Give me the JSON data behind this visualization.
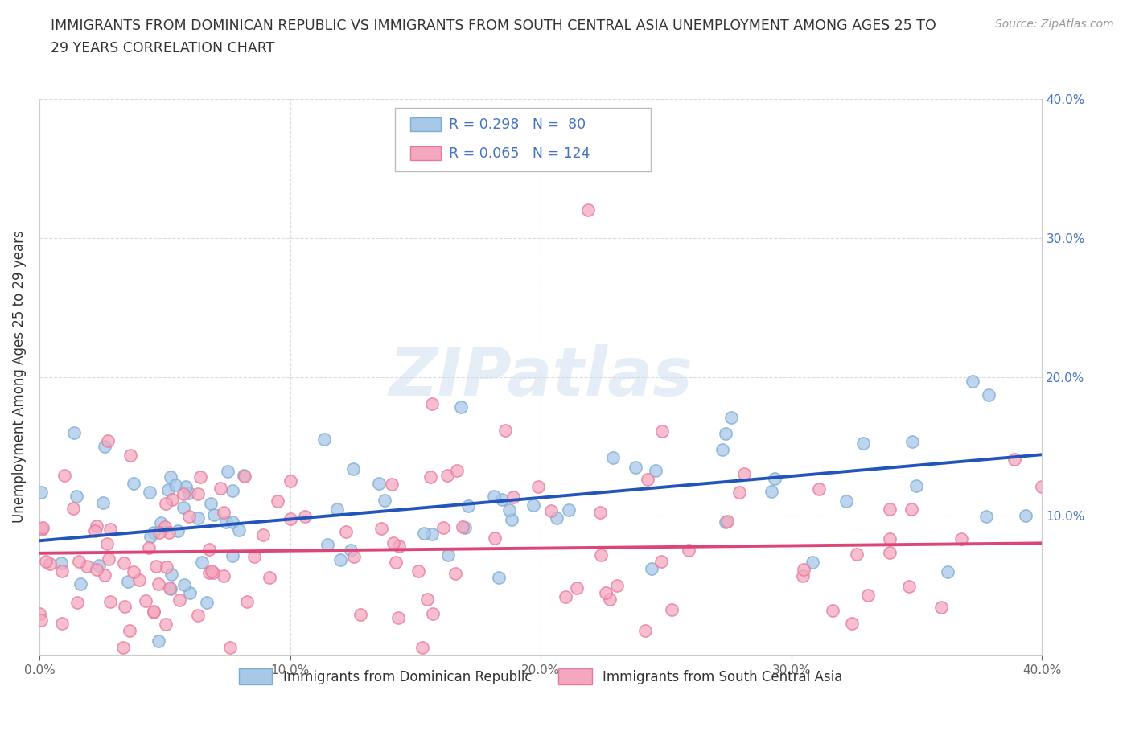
{
  "title_line1": "IMMIGRANTS FROM DOMINICAN REPUBLIC VS IMMIGRANTS FROM SOUTH CENTRAL ASIA UNEMPLOYMENT AMONG AGES 25 TO",
  "title_line2": "29 YEARS CORRELATION CHART",
  "source_text": "Source: ZipAtlas.com",
  "ylabel": "Unemployment Among Ages 25 to 29 years",
  "xlim": [
    0.0,
    0.4
  ],
  "ylim": [
    0.0,
    0.4
  ],
  "xticks": [
    0.0,
    0.1,
    0.2,
    0.3,
    0.4
  ],
  "yticks": [
    0.0,
    0.1,
    0.2,
    0.3,
    0.4
  ],
  "xticklabels": [
    "0.0%",
    "10.0%",
    "20.0%",
    "30.0%",
    "40.0%"
  ],
  "yticklabels_right": [
    "",
    "10.0%",
    "20.0%",
    "30.0%",
    "40.0%"
  ],
  "series1_label": "Immigrants from Dominican Republic",
  "series2_label": "Immigrants from South Central Asia",
  "series1_color": "#a8c8e8",
  "series2_color": "#f4a8c0",
  "series1_edge_color": "#7aacd4",
  "series2_edge_color": "#e87898",
  "series1_line_color": "#2255bb",
  "series2_line_color": "#dd4477",
  "series1_R": 0.298,
  "series1_N": 80,
  "series2_R": 0.065,
  "series2_N": 124,
  "legend_color": "#4472c4",
  "watermark_text": "ZIPatlas",
  "background_color": "#ffffff",
  "grid_color": "#cccccc",
  "series1_intercept": 0.082,
  "series1_slope": 0.155,
  "series2_intercept": 0.073,
  "series2_slope": 0.018,
  "seed": 12345
}
